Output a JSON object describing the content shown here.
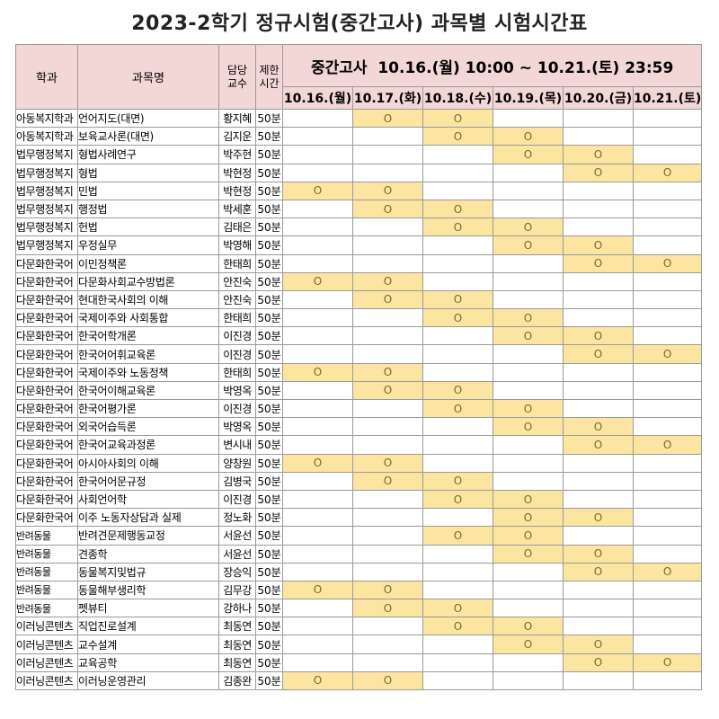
{
  "title": "2023-2학기 정규시험(중간고사) 과목별 시험시간표",
  "headers": {
    "dept": "학과",
    "course": "과목명",
    "prof_line1": "담당",
    "prof_line2": "교수",
    "limit_line1": "제한",
    "limit_line2": "시간",
    "period": "중간고사  10.16.(월) 10:00 ~ 10.21.(토) 23:59"
  },
  "days": [
    "10.16.(월)",
    "10.17.(화)",
    "10.18.(수)",
    "10.19.(목)",
    "10.20.(금)",
    "10.21.(토)"
  ],
  "mark": "O",
  "rows": [
    {
      "dept": "아동복지학과",
      "course": "언어지도(대면)",
      "prof": "황지혜",
      "limit": "50분",
      "days": [
        0,
        1,
        1,
        0,
        0,
        0
      ]
    },
    {
      "dept": "아동복지학과",
      "course": "보육교사론(대면)",
      "prof": "김지운",
      "limit": "50분",
      "days": [
        0,
        0,
        1,
        1,
        0,
        0
      ]
    },
    {
      "dept": "법무행정복지",
      "course": "형법사례연구",
      "prof": "박주현",
      "limit": "50분",
      "days": [
        0,
        0,
        0,
        1,
        1,
        0
      ]
    },
    {
      "dept": "법무행정복지",
      "course": "형법",
      "prof": "박현정",
      "limit": "50분",
      "days": [
        0,
        0,
        0,
        0,
        1,
        1
      ]
    },
    {
      "dept": "법무행정복지",
      "course": "민법",
      "prof": "박현정",
      "limit": "50분",
      "days": [
        1,
        1,
        0,
        0,
        0,
        0
      ]
    },
    {
      "dept": "법무행정복지",
      "course": "행정법",
      "prof": "박세훈",
      "limit": "50분",
      "days": [
        0,
        1,
        1,
        0,
        0,
        0
      ]
    },
    {
      "dept": "법무행정복지",
      "course": "헌법",
      "prof": "김태은",
      "limit": "50분",
      "days": [
        0,
        0,
        1,
        1,
        0,
        0
      ]
    },
    {
      "dept": "법무행정복지",
      "course": "우정실무",
      "prof": "박영해",
      "limit": "50분",
      "days": [
        0,
        0,
        0,
        1,
        1,
        0
      ]
    },
    {
      "dept": "다문화한국어",
      "course": "이민정책론",
      "prof": "한태희",
      "limit": "50분",
      "days": [
        0,
        0,
        0,
        0,
        1,
        1
      ]
    },
    {
      "dept": "다문화한국어",
      "course": "다문화사회교수방법론",
      "prof": "안진숙",
      "limit": "50분",
      "days": [
        1,
        1,
        0,
        0,
        0,
        0
      ]
    },
    {
      "dept": "다문화한국어",
      "course": "현대한국사회의 이해",
      "prof": "안진숙",
      "limit": "50분",
      "days": [
        0,
        1,
        1,
        0,
        0,
        0
      ]
    },
    {
      "dept": "다문화한국어",
      "course": "국제이주와 사회통합",
      "prof": "한태희",
      "limit": "50분",
      "days": [
        0,
        0,
        1,
        1,
        0,
        0
      ]
    },
    {
      "dept": "다문화한국어",
      "course": "한국어학개론",
      "prof": "이진경",
      "limit": "50분",
      "days": [
        0,
        0,
        0,
        1,
        1,
        0
      ]
    },
    {
      "dept": "다문화한국어",
      "course": "한국어어휘교육론",
      "prof": "이진경",
      "limit": "50분",
      "days": [
        0,
        0,
        0,
        0,
        1,
        1
      ]
    },
    {
      "dept": "다문화한국어",
      "course": "국제이주와 노동정책",
      "prof": "한태희",
      "limit": "50분",
      "days": [
        1,
        1,
        0,
        0,
        0,
        0
      ]
    },
    {
      "dept": "다문화한국어",
      "course": "한국어이해교육론",
      "prof": "박영옥",
      "limit": "50분",
      "days": [
        0,
        1,
        1,
        0,
        0,
        0
      ]
    },
    {
      "dept": "다문화한국어",
      "course": "한국어평가론",
      "prof": "이진경",
      "limit": "50분",
      "days": [
        0,
        0,
        1,
        1,
        0,
        0
      ]
    },
    {
      "dept": "다문화한국어",
      "course": "외국어습득론",
      "prof": "박영옥",
      "limit": "50분",
      "days": [
        0,
        0,
        0,
        1,
        1,
        0
      ]
    },
    {
      "dept": "다문화한국어",
      "course": "한국어교육과정론",
      "prof": "변시내",
      "limit": "50분",
      "days": [
        0,
        0,
        0,
        0,
        1,
        1
      ]
    },
    {
      "dept": "다문화한국어",
      "course": "아시아사회의 이해",
      "prof": "양창원",
      "limit": "50분",
      "days": [
        1,
        1,
        0,
        0,
        0,
        0
      ]
    },
    {
      "dept": "다문화한국어",
      "course": "한국어어문규정",
      "prof": "김병국",
      "limit": "50분",
      "days": [
        0,
        1,
        1,
        0,
        0,
        0
      ]
    },
    {
      "dept": "다문화한국어",
      "course": "사회언어학",
      "prof": "이진경",
      "limit": "50분",
      "days": [
        0,
        0,
        1,
        1,
        0,
        0
      ]
    },
    {
      "dept": "다문화한국어",
      "course": "이주 노동자상담과 실제",
      "prof": "정노화",
      "limit": "50분",
      "days": [
        0,
        0,
        0,
        1,
        1,
        0
      ]
    },
    {
      "dept": "반려동물",
      "course": "반려견문제행동교정",
      "prof": "서윤선",
      "limit": "50분",
      "days": [
        0,
        0,
        1,
        1,
        0,
        0
      ]
    },
    {
      "dept": "반려동물",
      "course": "견종학",
      "prof": "서윤선",
      "limit": "50분",
      "days": [
        0,
        0,
        0,
        1,
        1,
        0
      ]
    },
    {
      "dept": "반려동물",
      "course": "동물복지및법규",
      "prof": "장승익",
      "limit": "50분",
      "days": [
        0,
        0,
        0,
        0,
        1,
        1
      ]
    },
    {
      "dept": "반려동물",
      "course": "동물해부생리학",
      "prof": "김무강",
      "limit": "50분",
      "days": [
        1,
        1,
        0,
        0,
        0,
        0
      ]
    },
    {
      "dept": "반려동물",
      "course": "펫뷰티",
      "prof": "강하나",
      "limit": "50분",
      "days": [
        0,
        1,
        1,
        0,
        0,
        0
      ]
    },
    {
      "dept": "이러닝콘텐츠",
      "course": "직업진로설계",
      "prof": "최동연",
      "limit": "50분",
      "days": [
        0,
        0,
        1,
        1,
        0,
        0
      ]
    },
    {
      "dept": "이러닝콘텐츠",
      "course": "교수설계",
      "prof": "최동연",
      "limit": "50분",
      "days": [
        0,
        0,
        0,
        1,
        1,
        0
      ]
    },
    {
      "dept": "이러닝콘텐츠",
      "course": "교육공학",
      "prof": "최동연",
      "limit": "50분",
      "days": [
        0,
        0,
        0,
        0,
        1,
        1
      ]
    },
    {
      "dept": "이러닝콘텐츠",
      "course": "이러닝운영관리",
      "prof": "김종완",
      "limit": "50분",
      "days": [
        1,
        1,
        0,
        0,
        0,
        0
      ]
    }
  ],
  "colors": {
    "header_bg": "#f2d7d6",
    "mark_bg": "#fbe5a0",
    "border": "#9a9a9a"
  }
}
